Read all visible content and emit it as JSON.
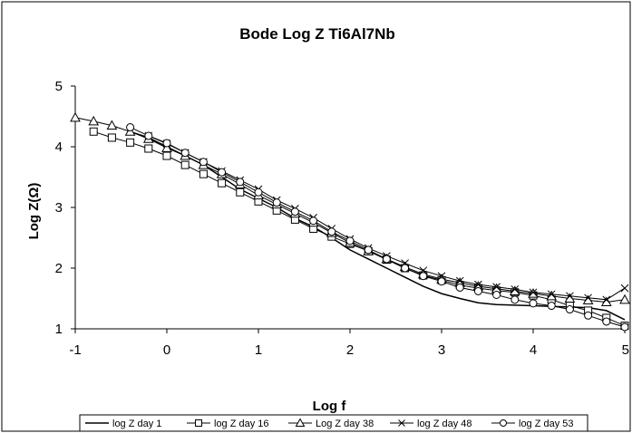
{
  "chart_data": {
    "type": "line",
    "title": "Bode Log Z Ti6Al7Nb",
    "xlabel": "Log f",
    "ylabel": "Log Z(Ω)",
    "xlim": [
      -1,
      5
    ],
    "ylim": [
      1,
      5
    ],
    "x_ticks": [
      "-1",
      "0",
      "1",
      "2",
      "3",
      "4",
      "5"
    ],
    "y_ticks": [
      "1",
      "2",
      "3",
      "4",
      "5"
    ],
    "grid": false,
    "legend_position": "bottom",
    "series": [
      {
        "name": "log Z day 1",
        "marker": "none",
        "points": [
          [
            -0.4,
            4.25
          ],
          [
            -0.2,
            4.15
          ],
          [
            0,
            4.0
          ],
          [
            0.2,
            3.85
          ],
          [
            0.4,
            3.7
          ],
          [
            0.6,
            3.5
          ],
          [
            0.8,
            3.3
          ],
          [
            1.0,
            3.15
          ],
          [
            1.2,
            3.0
          ],
          [
            1.4,
            2.82
          ],
          [
            1.6,
            2.68
          ],
          [
            1.8,
            2.5
          ],
          [
            2.0,
            2.3
          ],
          [
            2.2,
            2.15
          ],
          [
            2.4,
            2.0
          ],
          [
            2.6,
            1.85
          ],
          [
            2.8,
            1.7
          ],
          [
            3.0,
            1.58
          ],
          [
            3.2,
            1.5
          ],
          [
            3.4,
            1.43
          ],
          [
            3.6,
            1.4
          ],
          [
            3.8,
            1.39
          ],
          [
            4.0,
            1.38
          ],
          [
            4.2,
            1.37
          ],
          [
            4.4,
            1.36
          ],
          [
            4.6,
            1.35
          ],
          [
            4.8,
            1.3
          ],
          [
            5.0,
            1.15
          ]
        ]
      },
      {
        "name": "log Z day 16",
        "marker": "square",
        "points": [
          [
            -0.8,
            4.25
          ],
          [
            -0.6,
            4.15
          ],
          [
            -0.4,
            4.07
          ],
          [
            -0.2,
            3.97
          ],
          [
            0,
            3.85
          ],
          [
            0.2,
            3.7
          ],
          [
            0.4,
            3.55
          ],
          [
            0.6,
            3.4
          ],
          [
            0.8,
            3.25
          ],
          [
            1.0,
            3.1
          ],
          [
            1.2,
            2.95
          ],
          [
            1.4,
            2.8
          ],
          [
            1.6,
            2.65
          ],
          [
            1.8,
            2.52
          ],
          [
            2.0,
            2.4
          ],
          [
            2.2,
            2.28
          ],
          [
            2.4,
            2.14
          ],
          [
            2.6,
            2.0
          ],
          [
            2.8,
            1.88
          ],
          [
            3.0,
            1.8
          ],
          [
            3.2,
            1.72
          ],
          [
            3.4,
            1.67
          ],
          [
            3.6,
            1.63
          ],
          [
            3.8,
            1.6
          ],
          [
            4.0,
            1.55
          ],
          [
            4.2,
            1.48
          ],
          [
            4.4,
            1.38
          ],
          [
            4.6,
            1.3
          ],
          [
            4.8,
            1.18
          ],
          [
            5.0,
            1.05
          ]
        ]
      },
      {
        "name": "Log Z day 38",
        "marker": "triangle",
        "points": [
          [
            -1.0,
            4.48
          ],
          [
            -0.8,
            4.42
          ],
          [
            -0.6,
            4.35
          ],
          [
            -0.4,
            4.25
          ],
          [
            -0.2,
            4.13
          ],
          [
            0,
            3.98
          ],
          [
            0.2,
            3.85
          ],
          [
            0.4,
            3.7
          ],
          [
            0.6,
            3.55
          ],
          [
            0.8,
            3.38
          ],
          [
            1.0,
            3.2
          ],
          [
            1.2,
            3.05
          ],
          [
            1.4,
            2.9
          ],
          [
            1.6,
            2.75
          ],
          [
            1.8,
            2.58
          ],
          [
            2.0,
            2.42
          ],
          [
            2.2,
            2.28
          ],
          [
            2.4,
            2.15
          ],
          [
            2.6,
            2.02
          ],
          [
            2.8,
            1.9
          ],
          [
            3.0,
            1.82
          ],
          [
            3.2,
            1.76
          ],
          [
            3.4,
            1.7
          ],
          [
            3.6,
            1.66
          ],
          [
            3.8,
            1.62
          ],
          [
            4.0,
            1.58
          ],
          [
            4.2,
            1.54
          ],
          [
            4.4,
            1.5
          ],
          [
            4.6,
            1.47
          ],
          [
            4.8,
            1.44
          ],
          [
            5.0,
            1.48
          ]
        ]
      },
      {
        "name": "log Z day 48",
        "marker": "x",
        "points": [
          [
            -0.2,
            4.18
          ],
          [
            0,
            4.05
          ],
          [
            0.2,
            3.9
          ],
          [
            0.4,
            3.75
          ],
          [
            0.6,
            3.6
          ],
          [
            0.8,
            3.45
          ],
          [
            1.0,
            3.3
          ],
          [
            1.2,
            3.12
          ],
          [
            1.4,
            2.98
          ],
          [
            1.6,
            2.83
          ],
          [
            1.8,
            2.65
          ],
          [
            2.0,
            2.48
          ],
          [
            2.2,
            2.33
          ],
          [
            2.4,
            2.2
          ],
          [
            2.6,
            2.08
          ],
          [
            2.8,
            1.96
          ],
          [
            3.0,
            1.87
          ],
          [
            3.2,
            1.79
          ],
          [
            3.4,
            1.73
          ],
          [
            3.6,
            1.69
          ],
          [
            3.8,
            1.65
          ],
          [
            4.0,
            1.6
          ],
          [
            4.2,
            1.57
          ],
          [
            4.4,
            1.54
          ],
          [
            4.6,
            1.51
          ],
          [
            4.8,
            1.48
          ],
          [
            5.0,
            1.67
          ]
        ]
      },
      {
        "name": "log Z day 53",
        "marker": "circle",
        "points": [
          [
            -0.4,
            4.32
          ],
          [
            -0.2,
            4.18
          ],
          [
            0,
            4.06
          ],
          [
            0.2,
            3.9
          ],
          [
            0.4,
            3.75
          ],
          [
            0.6,
            3.58
          ],
          [
            0.8,
            3.42
          ],
          [
            1.0,
            3.25
          ],
          [
            1.2,
            3.08
          ],
          [
            1.4,
            2.93
          ],
          [
            1.6,
            2.78
          ],
          [
            1.8,
            2.6
          ],
          [
            2.0,
            2.45
          ],
          [
            2.2,
            2.3
          ],
          [
            2.4,
            2.15
          ],
          [
            2.6,
            2.0
          ],
          [
            2.8,
            1.87
          ],
          [
            3.0,
            1.78
          ],
          [
            3.2,
            1.68
          ],
          [
            3.4,
            1.62
          ],
          [
            3.6,
            1.56
          ],
          [
            3.8,
            1.48
          ],
          [
            4.0,
            1.42
          ],
          [
            4.2,
            1.38
          ],
          [
            4.4,
            1.32
          ],
          [
            4.6,
            1.22
          ],
          [
            4.8,
            1.12
          ],
          [
            5.0,
            1.03
          ]
        ]
      }
    ]
  }
}
